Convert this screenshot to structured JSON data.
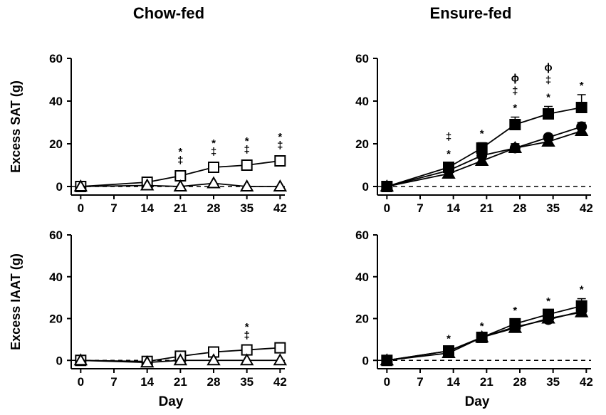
{
  "column_titles": [
    "Chow-fed",
    "Ensure-fed"
  ],
  "chart_data": [
    {
      "type": "line",
      "panel": "top-left",
      "ylabel": "Excess SAT (g)",
      "xlabel": "",
      "xlim": [
        -2,
        43
      ],
      "ylim": [
        -4,
        60
      ],
      "xticks": [
        0,
        7,
        14,
        21,
        28,
        35,
        42
      ],
      "yticks": [
        0,
        20,
        40,
        60
      ],
      "baseline": 0,
      "series": [
        {
          "marker": "open-square",
          "x": [
            0,
            14,
            21,
            28,
            35,
            42
          ],
          "y": [
            0,
            2,
            5,
            9,
            10,
            12
          ],
          "err": [
            0,
            0.5,
            1,
            1,
            1,
            1
          ]
        },
        {
          "marker": "open-triangle",
          "x": [
            0,
            14,
            21,
            28,
            35,
            42
          ],
          "y": [
            0,
            0.5,
            0,
            1.5,
            0,
            0
          ],
          "err": [
            0,
            0,
            0,
            0,
            0,
            0
          ]
        }
      ],
      "annotations": [
        {
          "x": 21,
          "lines": [
            "*",
            "‡"
          ]
        },
        {
          "x": 28,
          "lines": [
            "*",
            "‡"
          ]
        },
        {
          "x": 35,
          "lines": [
            "*",
            "‡"
          ]
        },
        {
          "x": 42,
          "lines": [
            "*",
            "‡"
          ]
        }
      ]
    },
    {
      "type": "line",
      "panel": "top-right",
      "ylabel": "",
      "xlabel": "",
      "xlim": [
        -2,
        43
      ],
      "ylim": [
        -4,
        60
      ],
      "xticks": [
        0,
        7,
        14,
        21,
        28,
        35,
        42
      ],
      "yticks": [
        0,
        20,
        40,
        60
      ],
      "baseline": 0,
      "series": [
        {
          "marker": "filled-square",
          "x": [
            0,
            13,
            20,
            27,
            34,
            41
          ],
          "y": [
            0,
            9,
            18,
            29,
            34,
            37
          ],
          "err": [
            0.5,
            2,
            2.5,
            3.5,
            3.5,
            6
          ]
        },
        {
          "marker": "filled-circle",
          "x": [
            0,
            13,
            20,
            27,
            34,
            41
          ],
          "y": [
            0,
            7.5,
            14.5,
            18,
            23,
            28
          ],
          "err": [
            0,
            1.5,
            1.5,
            2,
            1.5,
            2
          ]
        },
        {
          "marker": "filled-triangle",
          "x": [
            0,
            13,
            20,
            27,
            34,
            41
          ],
          "y": [
            0,
            6,
            12,
            18,
            21,
            26
          ],
          "err": [
            0,
            1.5,
            1.5,
            2,
            1.5,
            2
          ]
        }
      ],
      "annotations": [
        {
          "x": 13,
          "lines": [
            "‡",
            "*"
          ]
        },
        {
          "x": 20,
          "lines": [
            "*"
          ]
        },
        {
          "x": 27,
          "lines": [
            "ϕ",
            "‡",
            "*"
          ]
        },
        {
          "x": 34,
          "lines": [
            "ϕ",
            "‡",
            "*"
          ]
        },
        {
          "x": 41,
          "lines": [
            "*"
          ]
        }
      ]
    },
    {
      "type": "line",
      "panel": "bottom-left",
      "ylabel": "Excess IAAT (g)",
      "xlabel": "Day",
      "xlim": [
        -2,
        43
      ],
      "ylim": [
        -4,
        60
      ],
      "xticks": [
        0,
        7,
        14,
        21,
        28,
        35,
        42
      ],
      "yticks": [
        0,
        20,
        40,
        60
      ],
      "baseline": 0,
      "series": [
        {
          "marker": "open-square",
          "x": [
            0,
            14,
            21,
            28,
            35,
            42
          ],
          "y": [
            0,
            -0.5,
            2,
            4,
            5,
            6
          ],
          "err": [
            0,
            0,
            0,
            0.5,
            0.5,
            0.5
          ]
        },
        {
          "marker": "open-triangle",
          "x": [
            0,
            14,
            21,
            28,
            35,
            42
          ],
          "y": [
            0,
            -1,
            0,
            0,
            0,
            0
          ],
          "err": [
            0,
            0,
            0,
            0,
            0,
            0
          ]
        }
      ],
      "annotations": [
        {
          "x": 35,
          "lines": [
            "*",
            "‡"
          ]
        }
      ]
    },
    {
      "type": "line",
      "panel": "bottom-right",
      "ylabel": "",
      "xlabel": "Day",
      "xlim": [
        -2,
        43
      ],
      "ylim": [
        -4,
        60
      ],
      "xticks": [
        0,
        7,
        14,
        21,
        28,
        35,
        42
      ],
      "yticks": [
        0,
        20,
        40,
        60
      ],
      "baseline": 0,
      "series": [
        {
          "marker": "filled-square",
          "x": [
            0,
            13,
            20,
            27,
            34,
            41
          ],
          "y": [
            0,
            4.5,
            11,
            17.5,
            22,
            26
          ],
          "err": [
            0,
            1.5,
            1,
            2,
            2,
            3.5
          ]
        },
        {
          "marker": "filled-circle",
          "x": [
            0,
            13,
            20,
            27,
            34,
            41
          ],
          "y": [
            0,
            4.5,
            11,
            16,
            19.5,
            23.5
          ],
          "err": [
            0,
            1,
            1,
            1.5,
            1.5,
            2
          ]
        },
        {
          "marker": "filled-triangle",
          "x": [
            0,
            13,
            20,
            27,
            34,
            41
          ],
          "y": [
            0,
            3.5,
            11,
            15.5,
            20,
            23
          ],
          "err": [
            0,
            1,
            1,
            1.5,
            1.5,
            1.5
          ]
        }
      ],
      "annotations": [
        {
          "x": 13,
          "lines": [
            "*"
          ]
        },
        {
          "x": 20,
          "lines": [
            "*"
          ]
        },
        {
          "x": 27,
          "lines": [
            "*"
          ]
        },
        {
          "x": 34,
          "lines": [
            "*"
          ]
        },
        {
          "x": 41,
          "lines": [
            "*"
          ]
        }
      ]
    }
  ]
}
